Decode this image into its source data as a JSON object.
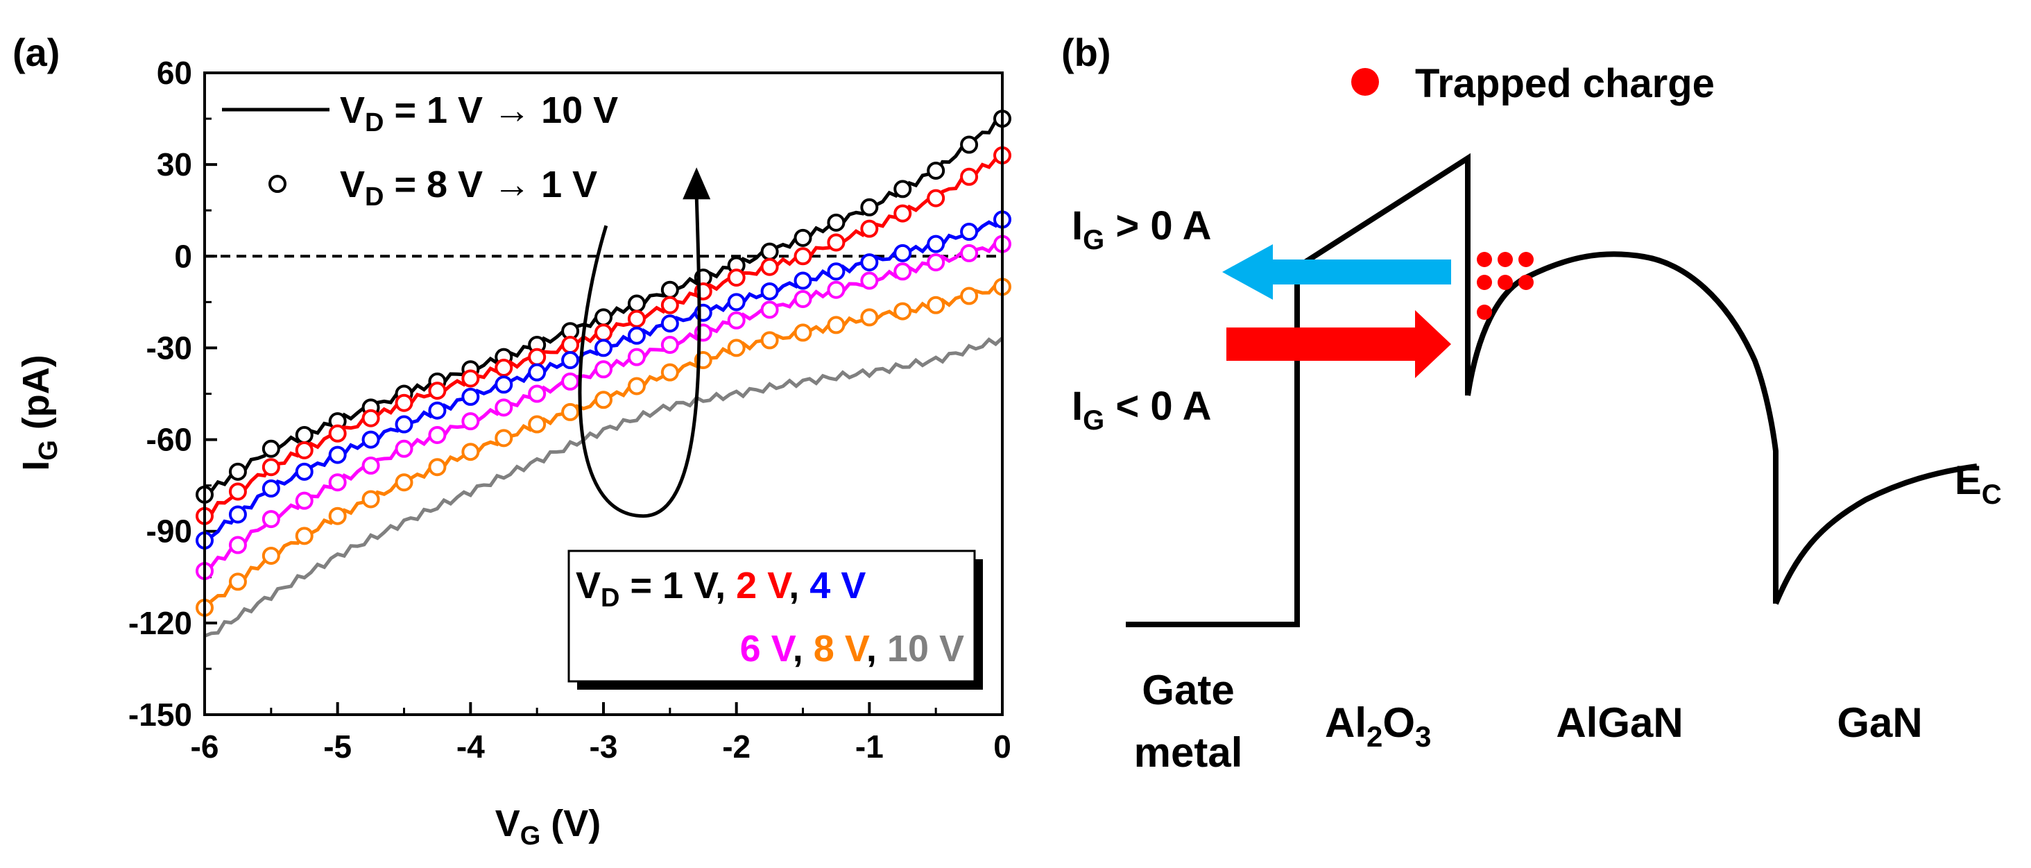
{
  "panels": {
    "a_label": "(a)",
    "b_label": "(b)"
  },
  "chart_data": {
    "type": "line",
    "xlabel_main": "V",
    "xlabel_sub": "G",
    "xlabel_unit": " (V)",
    "ylabel_main": "I",
    "ylabel_sub": "G",
    "ylabel_unit": " (pA)",
    "xlim": [
      -6,
      0
    ],
    "ylim": [
      -150,
      60
    ],
    "x_ticks": [
      -6,
      -5,
      -4,
      -3,
      -2,
      -1,
      0
    ],
    "x_tick_labels": [
      "-6",
      "-5",
      "-4",
      "-3",
      "-2",
      "-1",
      "0"
    ],
    "y_ticks": [
      -150,
      -120,
      -90,
      -60,
      -30,
      0,
      30,
      60
    ],
    "y_tick_labels": [
      "-150",
      "-120",
      "-90",
      "-60",
      "-30",
      "0",
      "30",
      "60"
    ],
    "zero_line": true,
    "legend": {
      "line_label_main": "V",
      "line_label_sub": "D",
      "line_label_rest": " = 1 V → 10 V",
      "marker_label_main": "V",
      "marker_label_sub": "D",
      "marker_label_rest": " = 8 V → 1 V"
    },
    "color_legend": {
      "prefix_main": "V",
      "prefix_sub": "D",
      "prefix_rest": " = ",
      "row1": [
        {
          "text": "1 V",
          "color": "#000000"
        },
        {
          "text": ", ",
          "color": "#000000"
        },
        {
          "text": "2 V",
          "color": "#ff0000"
        },
        {
          "text": ", ",
          "color": "#000000"
        },
        {
          "text": "4 V",
          "color": "#0000ff"
        }
      ],
      "row2": [
        {
          "text": "6 V",
          "color": "#ff00ff"
        },
        {
          "text": ", ",
          "color": "#000000"
        },
        {
          "text": "8 V",
          "color": "#ff8000"
        },
        {
          "text": ", ",
          "color": "#000000"
        },
        {
          "text": "10 V",
          "color": "#808080"
        }
      ]
    },
    "series": [
      {
        "name": "V_D = 1 V",
        "color": "#000000",
        "x": [
          -6,
          -5.5,
          -5,
          -4.5,
          -4,
          -3.5,
          -3,
          -2.5,
          -2,
          -1.5,
          -1,
          -0.5,
          0
        ],
        "values": [
          -78,
          -63,
          -54,
          -45,
          -37,
          -29,
          -20,
          -11,
          -3,
          6,
          16,
          28,
          45
        ],
        "markers": true
      },
      {
        "name": "V_D = 2 V",
        "color": "#ff0000",
        "x": [
          -6,
          -5.5,
          -5,
          -4.5,
          -4,
          -3.5,
          -3,
          -2.5,
          -2,
          -1.5,
          -1,
          -0.5,
          0
        ],
        "values": [
          -85,
          -69,
          -58,
          -48,
          -40,
          -33,
          -25,
          -16,
          -7,
          0,
          9,
          19,
          33
        ],
        "markers": true
      },
      {
        "name": "V_D = 4 V",
        "color": "#0000ff",
        "x": [
          -6,
          -5.5,
          -5,
          -4.5,
          -4,
          -3.5,
          -3,
          -2.5,
          -2,
          -1.5,
          -1,
          -0.5,
          0
        ],
        "values": [
          -93,
          -76,
          -65,
          -55,
          -46,
          -38,
          -30,
          -22,
          -15,
          -8,
          -2,
          4,
          12
        ],
        "markers": true
      },
      {
        "name": "V_D = 6 V",
        "color": "#ff00ff",
        "x": [
          -6,
          -5.5,
          -5,
          -4.5,
          -4,
          -3.5,
          -3,
          -2.5,
          -2,
          -1.5,
          -1,
          -0.5,
          0
        ],
        "values": [
          -103,
          -86,
          -74,
          -63,
          -54,
          -45,
          -37,
          -29,
          -21,
          -14,
          -8,
          -2,
          4
        ],
        "markers": true
      },
      {
        "name": "V_D = 8 V",
        "color": "#ff8000",
        "x": [
          -6,
          -5.5,
          -5,
          -4.5,
          -4,
          -3.5,
          -3,
          -2.5,
          -2,
          -1.5,
          -1,
          -0.5,
          0
        ],
        "values": [
          -115,
          -98,
          -85,
          -74,
          -64,
          -55,
          -47,
          -38,
          -30,
          -25,
          -20,
          -16,
          -10
        ],
        "markers": true
      },
      {
        "name": "V_D = 10 V",
        "color": "#808080",
        "x": [
          -6,
          -5.5,
          -5,
          -4.5,
          -4,
          -3.5,
          -3,
          -2.5,
          -2,
          -1.5,
          -1,
          -0.5,
          0
        ],
        "values": [
          -125,
          -111,
          -98,
          -87,
          -77,
          -67,
          -57,
          -49,
          -45,
          -41,
          -38,
          -34,
          -27
        ],
        "markers": false
      }
    ],
    "hysteresis_loop": {
      "x_from": -2.3,
      "y_from": -60,
      "x_to": -2.3,
      "y_to": 20,
      "bottom_y": -85
    }
  },
  "band_diagram": {
    "legend_label": "Trapped charge",
    "ig_pos_main": "I",
    "ig_pos_sub": "G",
    "ig_pos_rest": " > 0 A",
    "ig_neg_main": "I",
    "ig_neg_sub": "G",
    "ig_neg_rest": " < 0 A",
    "ec_main": "E",
    "ec_sub": "C",
    "layer_gate_line1": "Gate",
    "layer_gate_line2": "metal",
    "layer_oxide_a": "Al",
    "layer_oxide_sub1": "2",
    "layer_oxide_b": "O",
    "layer_oxide_sub2": "3",
    "layer_algan": "AlGaN",
    "layer_gan": "GaN",
    "colors": {
      "trap": "#ff0000",
      "arrow_pos": "#00b0f0",
      "arrow_neg": "#ff0000",
      "band": "#000000"
    }
  }
}
